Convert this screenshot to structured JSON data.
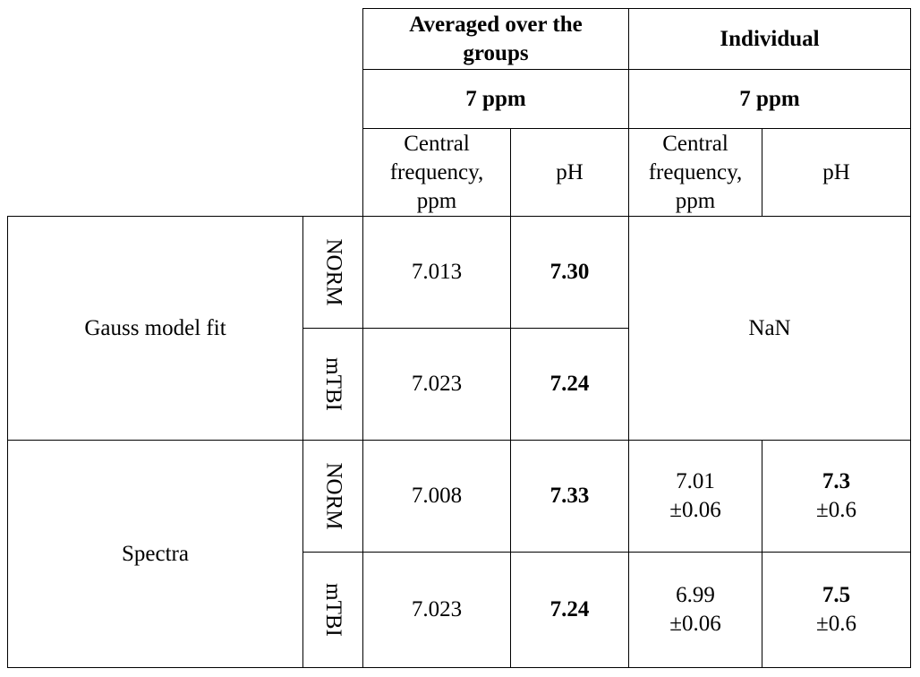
{
  "header": {
    "group_averaged": "Averaged over the groups",
    "group_individual": "Individual",
    "freq_averaged": "7 ppm",
    "freq_individual": "7 ppm",
    "col_central_freq_1": "Central frequency, ppm",
    "col_ph_1": "pH",
    "col_central_freq_2": "Central frequency, ppm",
    "col_ph_2": "pH"
  },
  "rows": {
    "gauss": {
      "label": "Gauss model fit",
      "norm": {
        "sub": "NORM",
        "freq": "7.013",
        "ph": "7.30"
      },
      "mtbi": {
        "sub": "mTBI",
        "freq": "7.023",
        "ph": "7.24"
      },
      "individual": "NaN"
    },
    "spectra": {
      "label": "Spectra",
      "norm": {
        "sub": "NORM",
        "freq": "7.008",
        "ph": "7.33",
        "ind_freq": "7.01",
        "ind_freq_err": "±0.06",
        "ind_ph": "7.3",
        "ind_ph_err": "±0.6"
      },
      "mtbi": {
        "sub": "mTBI",
        "freq": "7.023",
        "ph": "7.24",
        "ind_freq": "6.99",
        "ind_freq_err": "±0.06",
        "ind_ph": "7.5",
        "ind_ph_err": "±0.6"
      }
    }
  }
}
